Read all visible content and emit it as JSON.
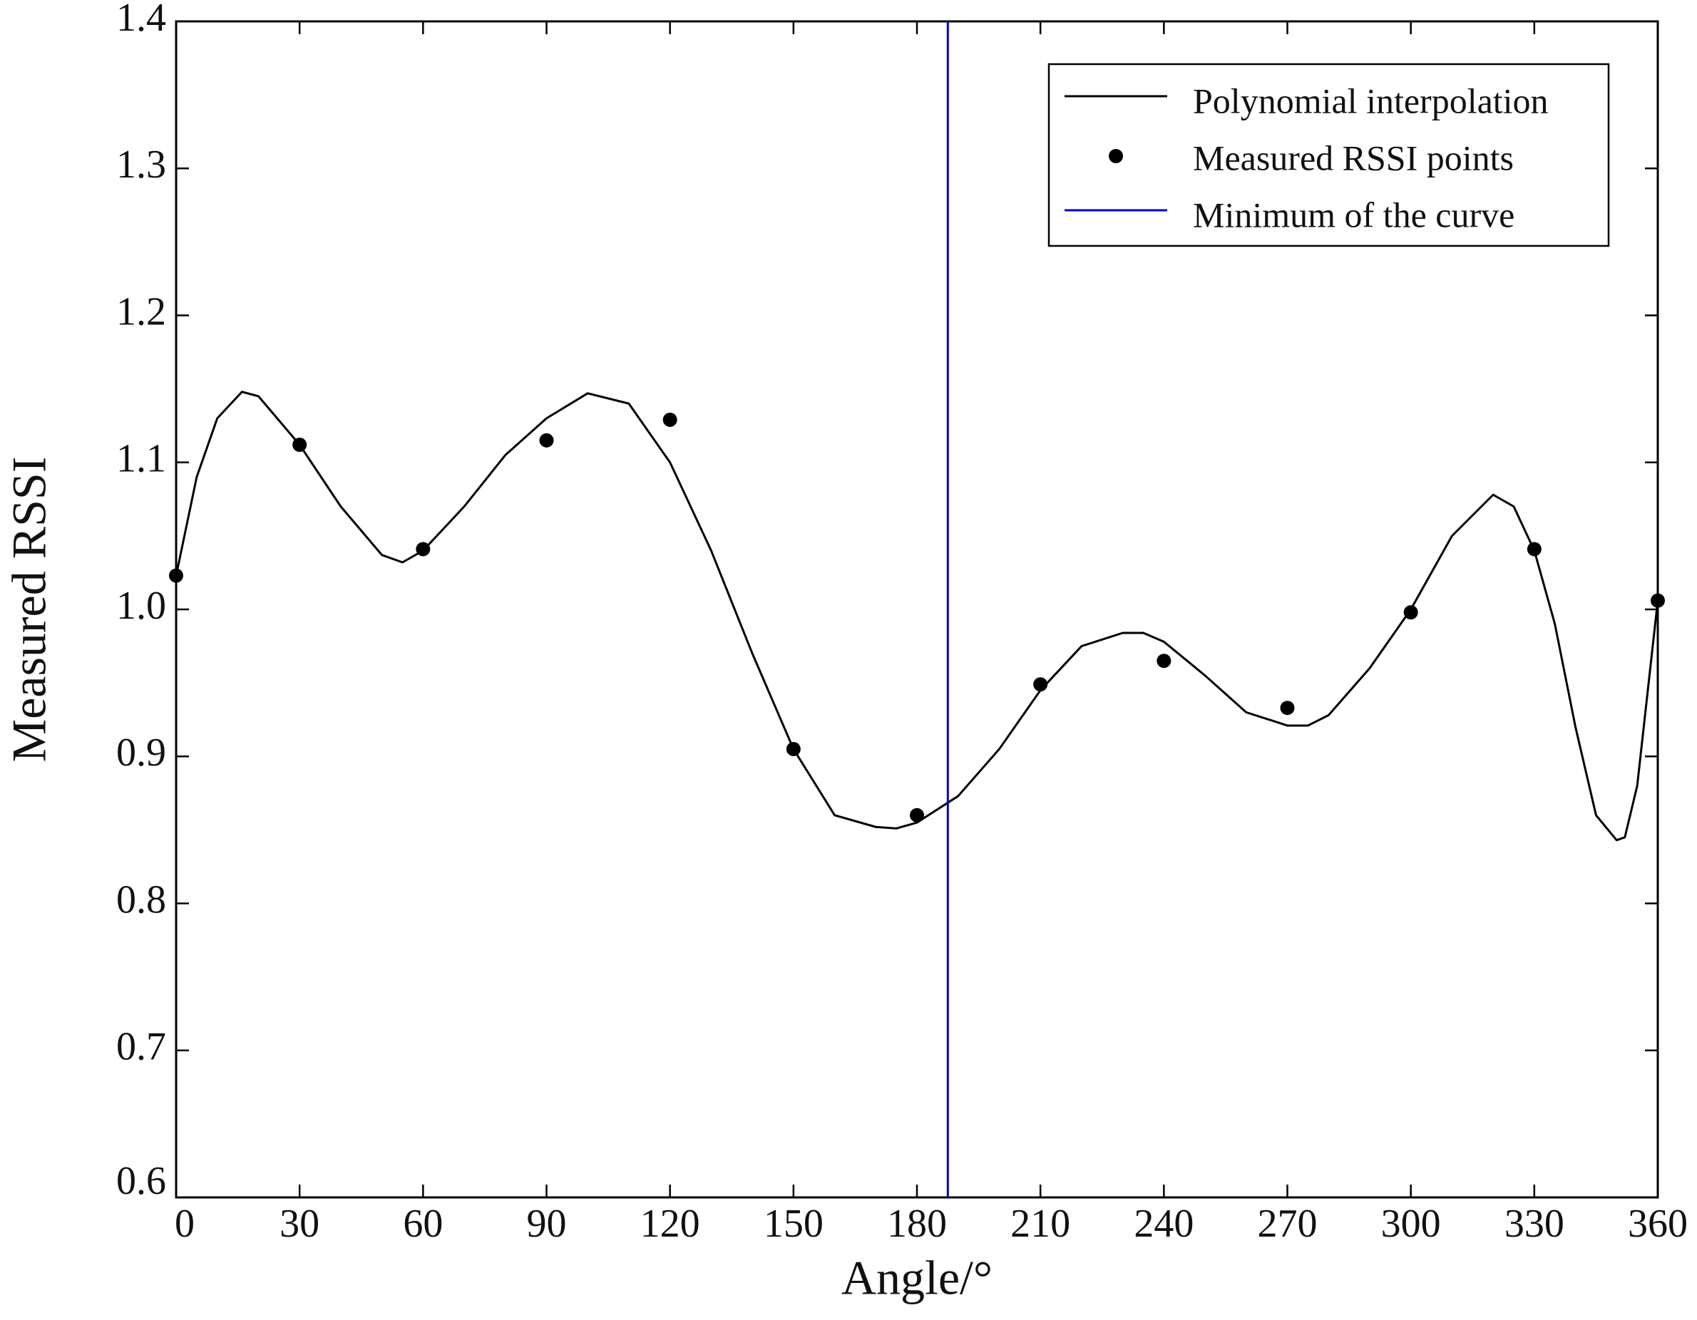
{
  "chart_data": {
    "type": "line",
    "xlabel": "Angle/°",
    "ylabel": "Measured RSSI",
    "xlim": [
      0,
      360
    ],
    "ylim": [
      0.6,
      1.4
    ],
    "xticks": [
      0,
      30,
      60,
      90,
      120,
      150,
      180,
      210,
      240,
      270,
      300,
      330,
      360
    ],
    "yticks": [
      0.6,
      0.7,
      0.8,
      0.9,
      {
        "value": 1,
        "label": "1.0"
      },
      1.1,
      1.2,
      1.3,
      1.4
    ],
    "legend": "upper right",
    "series": [
      {
        "name": "Polynomial interpolation",
        "kind": "line",
        "color": "#000000",
        "x": [
          0,
          5,
          10,
          16,
          20,
          30,
          40,
          50,
          55,
          60,
          70,
          80,
          90,
          100,
          110,
          120,
          130,
          140,
          150,
          160,
          170,
          175,
          180,
          190,
          200,
          210,
          220,
          230,
          235,
          240,
          250,
          260,
          270,
          275,
          280,
          290,
          300,
          310,
          320,
          325,
          330,
          335,
          340,
          345,
          350,
          352,
          355,
          360
        ],
        "values": [
          1.023,
          1.09,
          1.13,
          1.148,
          1.145,
          1.112,
          1.07,
          1.037,
          1.032,
          1.04,
          1.07,
          1.105,
          1.13,
          1.147,
          1.14,
          1.1,
          1.04,
          0.97,
          0.905,
          0.86,
          0.852,
          0.851,
          0.855,
          0.873,
          0.905,
          0.945,
          0.975,
          0.984,
          0.984,
          0.978,
          0.955,
          0.93,
          0.921,
          0.921,
          0.928,
          0.96,
          1.0,
          1.05,
          1.078,
          1.07,
          1.04,
          0.99,
          0.92,
          0.86,
          0.843,
          0.845,
          0.88,
          1.006
        ]
      },
      {
        "name": "Measured RSSI points",
        "kind": "scatter",
        "color": "#000000",
        "x": [
          0,
          30,
          60,
          90,
          120,
          150,
          180,
          210,
          240,
          270,
          300,
          330,
          360
        ],
        "values": [
          1.023,
          1.112,
          1.041,
          1.115,
          1.129,
          0.905,
          0.86,
          0.949,
          0.965,
          0.933,
          0.998,
          1.041,
          1.006
        ]
      },
      {
        "name": "Minimum of the curve",
        "kind": "vline",
        "color": "#0000cc",
        "x": [
          187.5
        ]
      }
    ]
  }
}
